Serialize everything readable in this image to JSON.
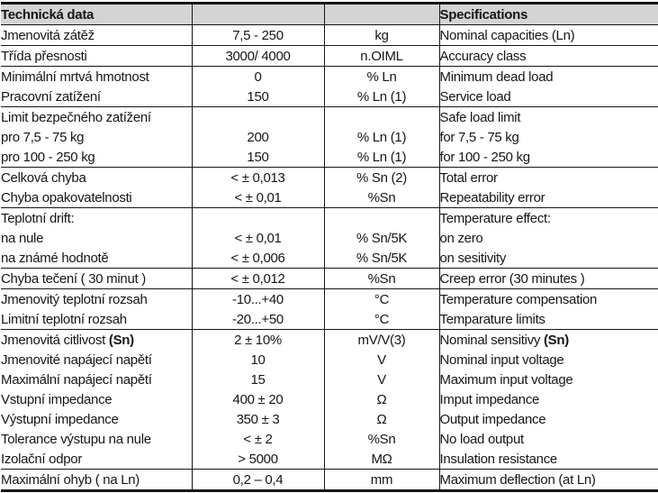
{
  "table": {
    "header": {
      "czech_title": "Technická data",
      "value_col": "",
      "unit_col": "",
      "english_title": "Specifications"
    },
    "rows": [
      {
        "cz": "Jmenovitá zátěž",
        "value": "7,5 - 250",
        "unit": "kg",
        "en": "Nominal capacities (Ln)",
        "sep": false
      },
      {
        "cz": "Třída přesnosti",
        "value": "3000/ 4000",
        "unit": "n.OIML",
        "en": "Accuracy class",
        "sep": true
      },
      {
        "cz": "Minimální mrtvá hmotnost",
        "value": "0",
        "unit": "% Ln",
        "en": "Minimum dead load",
        "sep": true
      },
      {
        "cz": "Pracovní zatížení",
        "value": "150",
        "unit": "% Ln (1)",
        "en": "Service load",
        "sep": false
      },
      {
        "cz": "Limit bezpečného zatížení",
        "value": "",
        "unit": "",
        "en": "Safe load limit",
        "sep": true
      },
      {
        "cz": "pro 7,5 - 75 kg",
        "value": "200",
        "unit": "% Ln (1)",
        "en": "for 7,5 - 75 kg",
        "sep": false
      },
      {
        "cz": "pro 100 - 250 kg",
        "value": "150",
        "unit": "% Ln (1)",
        "en": "for 100 - 250 kg",
        "sep": false
      },
      {
        "cz": "Celková chyba",
        "value": "< ± 0,013",
        "unit": "% Sn (2)",
        "en": "Total error",
        "sep": true
      },
      {
        "cz": "Chyba opakovatelnosti",
        "value": "< ± 0,01",
        "unit": "%Sn",
        "en": "Repeatability error",
        "sep": false
      },
      {
        "cz": "Teplotní drift:",
        "value": "",
        "unit": "",
        "en": "Temperature effect:",
        "sep": true
      },
      {
        "cz": "na nule",
        "value": "< ± 0,01",
        "unit": "% Sn/5K",
        "en": "on zero",
        "sep": false
      },
      {
        "cz": "na známé hodnotě",
        "value": "< ± 0,006",
        "unit": "% Sn/5K",
        "en": "on sesitivity",
        "sep": false
      },
      {
        "cz": "Chyba tečení ( 30 minut )",
        "value": "< ± 0,012",
        "unit": "%Sn",
        "en": "Creep error (30 minutes )",
        "sep": true
      },
      {
        "cz": "Jmenovitý teplotní rozsah",
        "value": "-10...+40",
        "unit": "°C",
        "en": "Temperature compensation",
        "sep": true
      },
      {
        "cz": "Limitní teplotní rozsah",
        "value": "-20...+50",
        "unit": "°C",
        "en": "Temparature limits",
        "sep": false
      },
      {
        "cz": "Jmenovitá citlivost ",
        "cz_bold": "(Sn)",
        "value": "2 ± 10%",
        "unit": "mV/V(3)",
        "en": "Nominal sensitivy ",
        "en_bold": "(Sn)",
        "sep": true
      },
      {
        "cz": "Jmenovité napájecí napětí",
        "value": "10",
        "unit": "V",
        "en": "Nominal input voltage",
        "sep": false
      },
      {
        "cz": "Maximální napájecí napětí",
        "value": "15",
        "unit": "V",
        "en": "Maximum input voltage",
        "sep": false
      },
      {
        "cz": "Vstupní impedance",
        "value": "400 ± 20",
        "unit": "Ω",
        "en": "Imput impedance",
        "sep": false
      },
      {
        "cz": "Výstupní impedance",
        "value": "350 ± 3",
        "unit": "Ω",
        "en": "Output impedance",
        "sep": false
      },
      {
        "cz": "Tolerance výstupu na nule",
        "value": "< ± 2",
        "unit": "%Sn",
        "en": "No load output",
        "sep": false
      },
      {
        "cz": "Izolační odpor",
        "value": "> 5000",
        "unit": "MΩ",
        "en": "Insulation resistance",
        "sep": false
      },
      {
        "cz": "Maximální ohyb ( na Ln)",
        "value": "0,2 – 0,4",
        "unit": "mm",
        "en": "Maximum deflection (at Ln)",
        "sep": true
      }
    ]
  },
  "colors": {
    "header_bg": "#d4d4d4",
    "border": "#161616",
    "text": "#161616"
  }
}
